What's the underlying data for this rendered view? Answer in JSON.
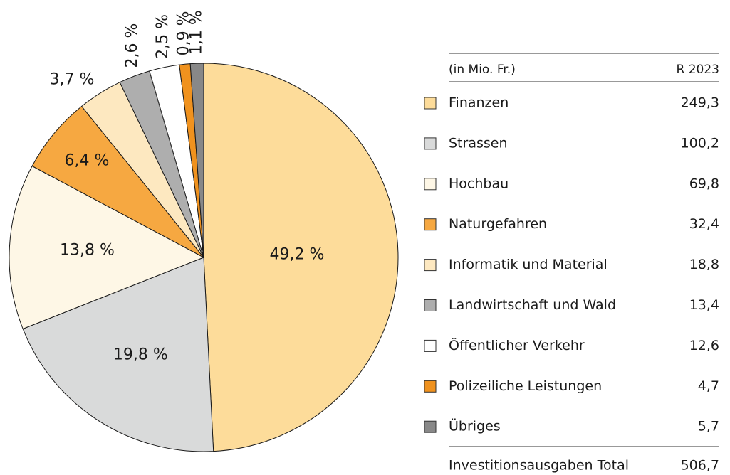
{
  "chart_data": {
    "type": "pie",
    "categories": [
      "Finanzen",
      "Strassen",
      "Hochbau",
      "Naturgefahren",
      "Informatik und Material",
      "Landwirtschaft und Wald",
      "Öffentlicher Verkehr",
      "Polizeiliche Leistungen",
      "Übriges"
    ],
    "values": [
      49.2,
      19.8,
      13.8,
      6.4,
      3.7,
      2.6,
      2.5,
      0.9,
      1.1
    ],
    "value_labels": [
      "49,2 %",
      "19,8 %",
      "13,8 %",
      "6,4 %",
      "3,7 %",
      "2,6 %",
      "2,5 %",
      "0,9 %",
      "1,1 %"
    ],
    "colors": [
      "#fddc9a",
      "#d9dada",
      "#fef7e6",
      "#f6a841",
      "#fde8c0",
      "#aeaeae",
      "#ffffff",
      "#f0921e",
      "#888888"
    ]
  },
  "table": {
    "header": [
      "(in Mio. Fr.)",
      "R 2023"
    ],
    "amounts": [
      "249,3",
      "100,2",
      "69,8",
      "32,4",
      "18,8",
      "13,4",
      "12,6",
      "4,7",
      "5,7"
    ],
    "total_label": "Investitionsausgaben Total",
    "total": "506,7"
  }
}
